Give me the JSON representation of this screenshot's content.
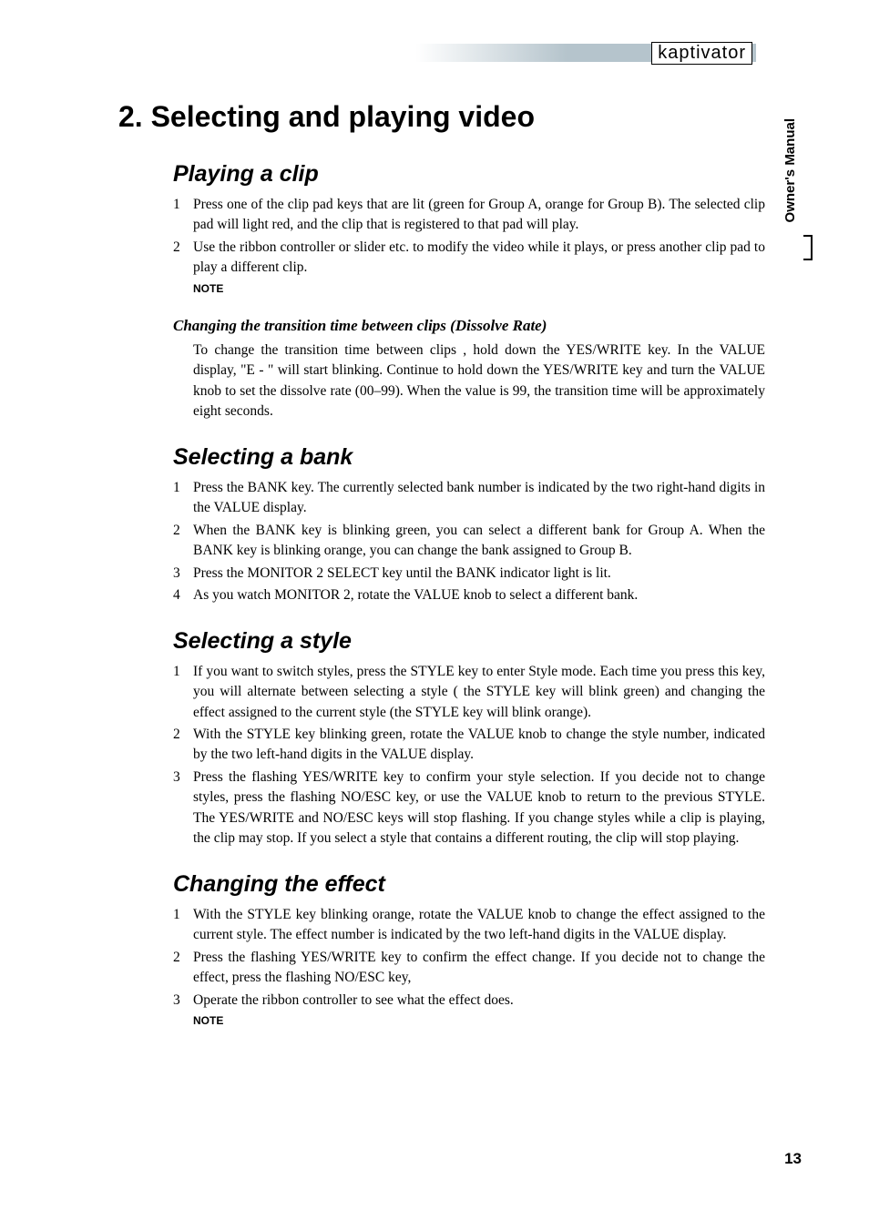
{
  "brand": "kaptivator",
  "side_label": "Owner's Manual",
  "page_number": "13",
  "h1": "2.  Selecting and playing video",
  "sections": {
    "playing": {
      "title": "Playing a clip",
      "steps": [
        "Press one of the clip pad keys that are lit (green for Group A, orange for Group B). The selected clip pad will light red, and the clip that is registered to that pad will play.",
        "Use the ribbon controller or slider etc. to modify the video while it plays, or press another clip pad to play a different clip."
      ],
      "note": "NOTE"
    },
    "dissolve": {
      "title": "Changing the transition time between clips (Dissolve Rate)",
      "para": "To change the transition time between clips , hold down the YES/WRITE key. In the VALUE display, \"E - \" will start blinking. Continue to hold down the YES/WRITE key and turn the VALUE knob to set the dissolve rate (00–99). When the value is 99, the transition time will be approximately eight seconds."
    },
    "bank": {
      "title": "Selecting a bank",
      "steps": [
        "Press the BANK key. The currently selected bank number is indicated by the two right-hand digits in the VALUE display.",
        "When the BANK key is blinking green, you can select a different bank for Group A. When the BANK key is blinking orange, you can change the bank assigned to Group B.",
        "Press the MONITOR 2 SELECT key until the BANK indicator light is lit.",
        "As you watch MONITOR 2, rotate the VALUE knob to select a different bank."
      ]
    },
    "style": {
      "title": "Selecting a style",
      "steps": [
        "If you want to switch styles, press the STYLE key to enter Style mode. Each time you press this key, you will alternate between selecting a style ( the STYLE key will blink green) and changing the effect assigned to the current style (the STYLE key will blink orange).",
        "With the STYLE key blinking green, rotate the VALUE knob to change the style number, indicated by the two left-hand digits in the VALUE display.",
        "Press the flashing YES/WRITE key to confirm your style selection.\nIf you decide not to change styles, press the flashing NO/ESC key, or use the VALUE knob to return to the previous STYLE. The YES/WRITE and NO/ESC keys will stop flashing. If you change styles while a clip is playing, the clip may stop. If you select a style that contains a different routing, the clip will stop playing."
      ]
    },
    "effect": {
      "title": "Changing the effect",
      "steps": [
        "With the STYLE key blinking orange, rotate the VALUE knob to change the effect assigned to the current style. The effect number is indicated by the two left-hand digits in the VALUE display.",
        "Press the flashing YES/WRITE key to confirm the effect change.\nIf you decide not to change the effect, press the flashing NO/ESC key,",
        "Operate the ribbon controller to see what the effect does."
      ],
      "note": "NOTE"
    }
  }
}
